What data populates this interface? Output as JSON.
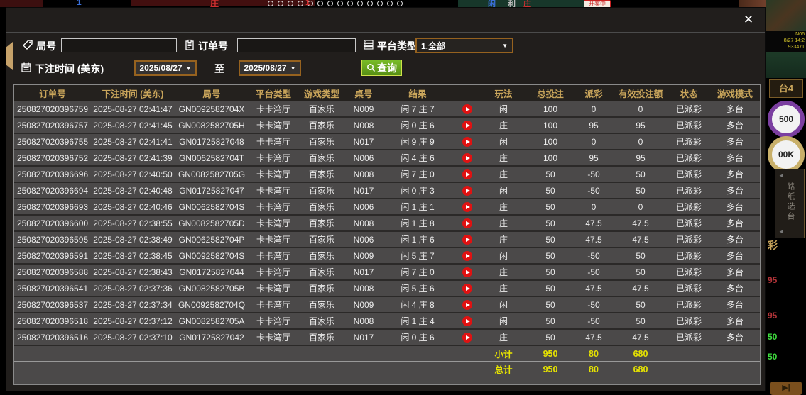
{
  "modal": {
    "close_icon": "✕",
    "filters": {
      "round_label": "局号",
      "round_value": "",
      "order_label": "订单号",
      "order_value": "",
      "platform_label": "平台类型",
      "platform_value": "1.全部",
      "time_label": "下注时间 (美东)",
      "date_from": "2025/08/27",
      "to_label": "至",
      "date_to": "2025/08/27",
      "search_label": "查询",
      "caret": "▼"
    },
    "table": {
      "headers": [
        "订单号",
        "下注时间 (美东)",
        "局号",
        "平台类型",
        "游戏类型",
        "桌号",
        "结果",
        "",
        "玩法",
        "总投注",
        "派彩",
        "有效投注额",
        "状态",
        "游戏模式"
      ],
      "rows": [
        {
          "order_id": "250827020396759",
          "bet_time": "2025-08-27 02:41:47",
          "round_id": "GN0092582704X",
          "platform": "卡卡湾厅",
          "game_type": "百家乐",
          "table_no": "N009",
          "result": "闲 7 庄 7",
          "bet_side": "闲",
          "total_bet": "100",
          "payout": "0",
          "valid_bet": "0",
          "status": "已派彩",
          "mode": "多台"
        },
        {
          "order_id": "250827020396757",
          "bet_time": "2025-08-27 02:41:45",
          "round_id": "GN0082582705H",
          "platform": "卡卡湾厅",
          "game_type": "百家乐",
          "table_no": "N008",
          "result": "闲 0 庄 6",
          "bet_side": "庄",
          "total_bet": "100",
          "payout": "95",
          "valid_bet": "95",
          "status": "已派彩",
          "mode": "多台"
        },
        {
          "order_id": "250827020396755",
          "bet_time": "2025-08-27 02:41:41",
          "round_id": "GN01725827048",
          "platform": "卡卡湾厅",
          "game_type": "百家乐",
          "table_no": "N017",
          "result": "闲 9 庄 9",
          "bet_side": "闲",
          "total_bet": "100",
          "payout": "0",
          "valid_bet": "0",
          "status": "已派彩",
          "mode": "多台"
        },
        {
          "order_id": "250827020396752",
          "bet_time": "2025-08-27 02:41:39",
          "round_id": "GN0062582704T",
          "platform": "卡卡湾厅",
          "game_type": "百家乐",
          "table_no": "N006",
          "result": "闲 4 庄 6",
          "bet_side": "庄",
          "total_bet": "100",
          "payout": "95",
          "valid_bet": "95",
          "status": "已派彩",
          "mode": "多台"
        },
        {
          "order_id": "250827020396696",
          "bet_time": "2025-08-27 02:40:50",
          "round_id": "GN0082582705G",
          "platform": "卡卡湾厅",
          "game_type": "百家乐",
          "table_no": "N008",
          "result": "闲 7 庄 0",
          "bet_side": "庄",
          "total_bet": "50",
          "payout": "-50",
          "valid_bet": "50",
          "status": "已派彩",
          "mode": "多台"
        },
        {
          "order_id": "250827020396694",
          "bet_time": "2025-08-27 02:40:48",
          "round_id": "GN01725827047",
          "platform": "卡卡湾厅",
          "game_type": "百家乐",
          "table_no": "N017",
          "result": "闲 0 庄 3",
          "bet_side": "闲",
          "total_bet": "50",
          "payout": "-50",
          "valid_bet": "50",
          "status": "已派彩",
          "mode": "多台"
        },
        {
          "order_id": "250827020396693",
          "bet_time": "2025-08-27 02:40:46",
          "round_id": "GN0062582704S",
          "platform": "卡卡湾厅",
          "game_type": "百家乐",
          "table_no": "N006",
          "result": "闲 1 庄 1",
          "bet_side": "庄",
          "total_bet": "50",
          "payout": "0",
          "valid_bet": "0",
          "status": "已派彩",
          "mode": "多台"
        },
        {
          "order_id": "250827020396600",
          "bet_time": "2025-08-27 02:38:55",
          "round_id": "GN0082582705D",
          "platform": "卡卡湾厅",
          "game_type": "百家乐",
          "table_no": "N008",
          "result": "闲 1 庄 8",
          "bet_side": "庄",
          "total_bet": "50",
          "payout": "47.5",
          "valid_bet": "47.5",
          "status": "已派彩",
          "mode": "多台"
        },
        {
          "order_id": "250827020396595",
          "bet_time": "2025-08-27 02:38:49",
          "round_id": "GN0062582704P",
          "platform": "卡卡湾厅",
          "game_type": "百家乐",
          "table_no": "N006",
          "result": "闲 1 庄 6",
          "bet_side": "庄",
          "total_bet": "50",
          "payout": "47.5",
          "valid_bet": "47.5",
          "status": "已派彩",
          "mode": "多台"
        },
        {
          "order_id": "250827020396591",
          "bet_time": "2025-08-27 02:38:45",
          "round_id": "GN0092582704S",
          "platform": "卡卡湾厅",
          "game_type": "百家乐",
          "table_no": "N009",
          "result": "闲 5 庄 7",
          "bet_side": "闲",
          "total_bet": "50",
          "payout": "-50",
          "valid_bet": "50",
          "status": "已派彩",
          "mode": "多台"
        },
        {
          "order_id": "250827020396588",
          "bet_time": "2025-08-27 02:38:43",
          "round_id": "GN01725827044",
          "platform": "卡卡湾厅",
          "game_type": "百家乐",
          "table_no": "N017",
          "result": "闲 7 庄 0",
          "bet_side": "庄",
          "total_bet": "50",
          "payout": "-50",
          "valid_bet": "50",
          "status": "已派彩",
          "mode": "多台"
        },
        {
          "order_id": "250827020396541",
          "bet_time": "2025-08-27 02:37:36",
          "round_id": "GN0082582705B",
          "platform": "卡卡湾厅",
          "game_type": "百家乐",
          "table_no": "N008",
          "result": "闲 5 庄 6",
          "bet_side": "庄",
          "total_bet": "50",
          "payout": "47.5",
          "valid_bet": "47.5",
          "status": "已派彩",
          "mode": "多台"
        },
        {
          "order_id": "250827020396537",
          "bet_time": "2025-08-27 02:37:34",
          "round_id": "GN0092582704Q",
          "platform": "卡卡湾厅",
          "game_type": "百家乐",
          "table_no": "N009",
          "result": "闲 4 庄 8",
          "bet_side": "闲",
          "total_bet": "50",
          "payout": "-50",
          "valid_bet": "50",
          "status": "已派彩",
          "mode": "多台"
        },
        {
          "order_id": "250827020396518",
          "bet_time": "2025-08-27 02:37:12",
          "round_id": "GN0082582705A",
          "platform": "卡卡湾厅",
          "game_type": "百家乐",
          "table_no": "N008",
          "result": "闲 1 庄 4",
          "bet_side": "闲",
          "total_bet": "50",
          "payout": "-50",
          "valid_bet": "50",
          "status": "已派彩",
          "mode": "多台"
        },
        {
          "order_id": "250827020396516",
          "bet_time": "2025-08-27 02:37:10",
          "round_id": "GN01725827042",
          "platform": "卡卡湾厅",
          "game_type": "百家乐",
          "table_no": "N017",
          "result": "闲 0 庄 6",
          "bet_side": "庄",
          "total_bet": "50",
          "payout": "47.5",
          "valid_bet": "47.5",
          "status": "已派彩",
          "mode": "多台"
        }
      ],
      "subtotal": {
        "label": "小计",
        "total_bet": "950",
        "payout": "80",
        "valid_bet": "680"
      },
      "total": {
        "label": "总计",
        "total_bet": "950",
        "payout": "80",
        "valid_bet": "680"
      }
    }
  },
  "background": {
    "top_fragments": {
      "banker": "庄",
      "one_red": "1",
      "blue_one": "1",
      "player": "闲",
      "win": "利",
      "banker2": "庄",
      "live_badge": "开奖中"
    },
    "right": {
      "camera_lines": [
        "N06",
        "8/27 14:2",
        "933471"
      ],
      "table_tab": "台4",
      "chip_500": "500",
      "chip_100k": "00K",
      "vertical_tab": "路纸选台",
      "gold_char": "彩",
      "numbers": [
        {
          "value": "95",
          "color": "#b03338"
        },
        {
          "value": "95",
          "color": "#b03338"
        },
        {
          "value": "50",
          "color": "#3fdc3f"
        },
        {
          "value": "50",
          "color": "#3fdc3f"
        }
      ],
      "next_icon": "▶|"
    }
  },
  "colors": {
    "header_gold": "#c9a55b",
    "win_red": "#b03338",
    "loss_green": "#3fdc3f",
    "status_green": "#2ec72e",
    "summary_yellow": "#e6e300",
    "query_green": "#67aa1d",
    "select_border": "#96621f",
    "row_gray": "#4b4949"
  }
}
